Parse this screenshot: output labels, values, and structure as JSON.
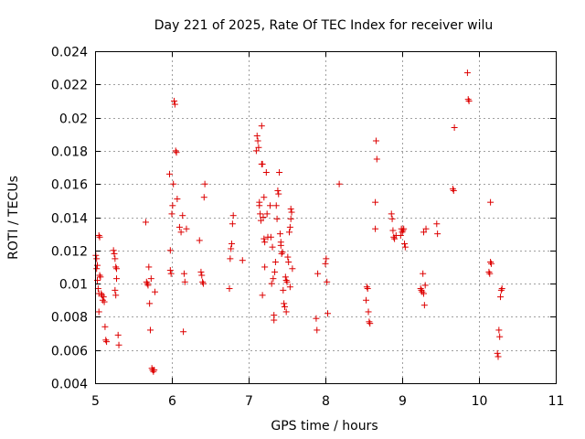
{
  "chart_data": {
    "type": "scatter",
    "title": "Day 221 of 2025, Rate Of TEC Index for receiver wilu",
    "xlabel": "GPS time / hours",
    "ylabel": "ROTI / TECUs",
    "xlim": [
      5,
      11
    ],
    "ylim": [
      0.004,
      0.024
    ],
    "xticks": [
      5,
      6,
      7,
      8,
      9,
      10,
      11
    ],
    "yticks": [
      0.004,
      0.006,
      0.008,
      0.01,
      0.012,
      0.014,
      0.016,
      0.018,
      0.02,
      0.022,
      0.024
    ],
    "ytick_labels": [
      "0.004",
      "0.006",
      "0.008",
      "0.01",
      "0.012",
      "0.014",
      "0.016",
      "0.018",
      "0.02",
      "0.022",
      "0.024"
    ],
    "grid": true,
    "marker": "+",
    "color": "#dd0000",
    "series": [
      {
        "name": "ROTI",
        "points": [
          [
            5.01,
            0.0117
          ],
          [
            5.02,
            0.0115
          ],
          [
            5.03,
            0.0111
          ],
          [
            5.02,
            0.0109
          ],
          [
            5.03,
            0.0102
          ],
          [
            5.04,
            0.0097
          ],
          [
            5.05,
            0.0094
          ],
          [
            5.05,
            0.0083
          ],
          [
            5.05,
            0.0129
          ],
          [
            5.06,
            0.0128
          ],
          [
            5.06,
            0.0105
          ],
          [
            5.07,
            0.0104
          ],
          [
            5.08,
            0.0094
          ],
          [
            5.09,
            0.0093
          ],
          [
            5.1,
            0.009
          ],
          [
            5.11,
            0.0092
          ],
          [
            5.12,
            0.0089
          ],
          [
            5.13,
            0.0074
          ],
          [
            5.14,
            0.0066
          ],
          [
            5.15,
            0.0065
          ],
          [
            5.24,
            0.012
          ],
          [
            5.25,
            0.0118
          ],
          [
            5.26,
            0.0115
          ],
          [
            5.27,
            0.011
          ],
          [
            5.28,
            0.0109
          ],
          [
            5.26,
            0.0096
          ],
          [
            5.27,
            0.0093
          ],
          [
            5.28,
            0.0103
          ],
          [
            5.3,
            0.0069
          ],
          [
            5.31,
            0.0063
          ],
          [
            5.66,
            0.0137
          ],
          [
            5.67,
            0.0101
          ],
          [
            5.68,
            0.01
          ],
          [
            5.69,
            0.0099
          ],
          [
            5.7,
            0.011
          ],
          [
            5.71,
            0.0088
          ],
          [
            5.72,
            0.0072
          ],
          [
            5.73,
            0.0103
          ],
          [
            5.74,
            0.0049
          ],
          [
            5.75,
            0.0048
          ],
          [
            5.76,
            0.0047
          ],
          [
            5.77,
            0.0048
          ],
          [
            5.78,
            0.0095
          ],
          [
            5.97,
            0.0166
          ],
          [
            5.98,
            0.012
          ],
          [
            5.98,
            0.0108
          ],
          [
            5.99,
            0.0106
          ],
          [
            6.0,
            0.0142
          ],
          [
            6.01,
            0.0147
          ],
          [
            6.02,
            0.016
          ],
          [
            6.03,
            0.021
          ],
          [
            6.04,
            0.0208
          ],
          [
            6.05,
            0.018
          ],
          [
            6.06,
            0.0179
          ],
          [
            6.07,
            0.0151
          ],
          [
            6.1,
            0.0134
          ],
          [
            6.12,
            0.0131
          ],
          [
            6.14,
            0.0141
          ],
          [
            6.15,
            0.0071
          ],
          [
            6.16,
            0.0106
          ],
          [
            6.17,
            0.0101
          ],
          [
            6.19,
            0.0133
          ],
          [
            6.36,
            0.0126
          ],
          [
            6.38,
            0.0107
          ],
          [
            6.39,
            0.0105
          ],
          [
            6.4,
            0.0101
          ],
          [
            6.41,
            0.01
          ],
          [
            6.42,
            0.0152
          ],
          [
            6.43,
            0.016
          ],
          [
            6.75,
            0.0097
          ],
          [
            6.76,
            0.0115
          ],
          [
            6.77,
            0.0121
          ],
          [
            6.78,
            0.0124
          ],
          [
            6.79,
            0.0136
          ],
          [
            6.8,
            0.0141
          ],
          [
            6.92,
            0.0114
          ],
          [
            7.1,
            0.018
          ],
          [
            7.11,
            0.0189
          ],
          [
            7.12,
            0.0186
          ],
          [
            7.13,
            0.0182
          ],
          [
            7.14,
            0.0149
          ],
          [
            7.14,
            0.0147
          ],
          [
            7.15,
            0.0142
          ],
          [
            7.16,
            0.0138
          ],
          [
            7.17,
            0.0172
          ],
          [
            7.17,
            0.0195
          ],
          [
            7.18,
            0.0172
          ],
          [
            7.19,
            0.014
          ],
          [
            7.2,
            0.0152
          ],
          [
            7.2,
            0.0127
          ],
          [
            7.21,
            0.0125
          ],
          [
            7.21,
            0.011
          ],
          [
            7.18,
            0.0093
          ],
          [
            7.23,
            0.0167
          ],
          [
            7.24,
            0.0142
          ],
          [
            7.25,
            0.0128
          ],
          [
            7.28,
            0.0147
          ],
          [
            7.29,
            0.0128
          ],
          [
            7.3,
            0.01
          ],
          [
            7.31,
            0.0122
          ],
          [
            7.32,
            0.0103
          ],
          [
            7.33,
            0.0081
          ],
          [
            7.33,
            0.0078
          ],
          [
            7.34,
            0.0107
          ],
          [
            7.35,
            0.0113
          ],
          [
            7.36,
            0.0147
          ],
          [
            7.37,
            0.0139
          ],
          [
            7.38,
            0.0156
          ],
          [
            7.39,
            0.0154
          ],
          [
            7.4,
            0.0167
          ],
          [
            7.41,
            0.013
          ],
          [
            7.42,
            0.0125
          ],
          [
            7.42,
            0.0123
          ],
          [
            7.43,
            0.0118
          ],
          [
            7.44,
            0.0119
          ],
          [
            7.45,
            0.0096
          ],
          [
            7.46,
            0.0088
          ],
          [
            7.47,
            0.0086
          ],
          [
            7.48,
            0.0104
          ],
          [
            7.49,
            0.0102
          ],
          [
            7.5,
            0.0101
          ],
          [
            7.51,
            0.0116
          ],
          [
            7.52,
            0.0113
          ],
          [
            7.53,
            0.0131
          ],
          [
            7.54,
            0.0134
          ],
          [
            7.55,
            0.0139
          ],
          [
            7.55,
            0.0145
          ],
          [
            7.56,
            0.0143
          ],
          [
            7.57,
            0.0109
          ],
          [
            7.49,
            0.0083
          ],
          [
            7.54,
            0.0098
          ],
          [
            7.88,
            0.0079
          ],
          [
            7.89,
            0.0072
          ],
          [
            7.9,
            0.0106
          ],
          [
            8.0,
            0.0112
          ],
          [
            8.01,
            0.0115
          ],
          [
            8.02,
            0.0101
          ],
          [
            8.03,
            0.0082
          ],
          [
            8.18,
            0.016
          ],
          [
            8.53,
            0.009
          ],
          [
            8.54,
            0.0098
          ],
          [
            8.55,
            0.0097
          ],
          [
            8.56,
            0.0083
          ],
          [
            8.57,
            0.0077
          ],
          [
            8.58,
            0.0076
          ],
          [
            8.65,
            0.0133
          ],
          [
            8.65,
            0.0149
          ],
          [
            8.66,
            0.0186
          ],
          [
            8.67,
            0.0175
          ],
          [
            8.86,
            0.0142
          ],
          [
            8.87,
            0.0139
          ],
          [
            8.88,
            0.0132
          ],
          [
            8.89,
            0.0128
          ],
          [
            8.9,
            0.0127
          ],
          [
            8.92,
            0.0129
          ],
          [
            8.98,
            0.0129
          ],
          [
            8.99,
            0.0133
          ],
          [
            9.0,
            0.0131
          ],
          [
            9.01,
            0.0132
          ],
          [
            9.02,
            0.0133
          ],
          [
            9.03,
            0.0124
          ],
          [
            9.04,
            0.0122
          ],
          [
            9.24,
            0.0097
          ],
          [
            9.25,
            0.0096
          ],
          [
            9.26,
            0.0095
          ],
          [
            9.27,
            0.0106
          ],
          [
            9.28,
            0.0094
          ],
          [
            9.29,
            0.0087
          ],
          [
            9.3,
            0.0099
          ],
          [
            9.28,
            0.0131
          ],
          [
            9.31,
            0.0133
          ],
          [
            9.45,
            0.0136
          ],
          [
            9.46,
            0.013
          ],
          [
            9.66,
            0.0157
          ],
          [
            9.67,
            0.0156
          ],
          [
            9.68,
            0.0194
          ],
          [
            9.85,
            0.0227
          ],
          [
            9.86,
            0.0211
          ],
          [
            9.87,
            0.021
          ],
          [
            10.13,
            0.0107
          ],
          [
            10.14,
            0.0106
          ],
          [
            10.15,
            0.0113
          ],
          [
            10.16,
            0.0112
          ],
          [
            10.15,
            0.0149
          ],
          [
            10.24,
            0.0058
          ],
          [
            10.25,
            0.0056
          ],
          [
            10.26,
            0.0072
          ],
          [
            10.27,
            0.0068
          ],
          [
            10.28,
            0.0092
          ],
          [
            10.29,
            0.0096
          ],
          [
            10.3,
            0.0097
          ]
        ]
      }
    ]
  }
}
